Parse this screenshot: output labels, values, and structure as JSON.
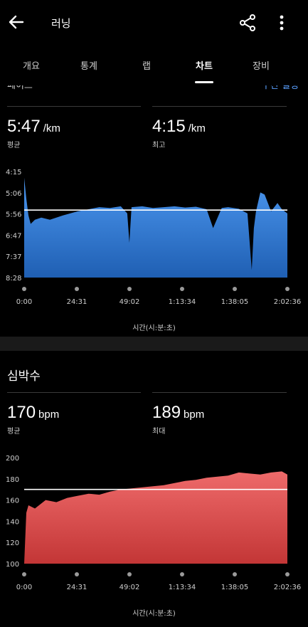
{
  "header": {
    "title": "러닝",
    "icons": {
      "back": "back-arrow-icon",
      "share": "share-icon",
      "more": "more-vertical-icon"
    }
  },
  "tabs": [
    {
      "label": "개요",
      "active": false
    },
    {
      "label": "통계",
      "active": false
    },
    {
      "label": "랩",
      "active": false
    },
    {
      "label": "차트",
      "active": true
    },
    {
      "label": "장비",
      "active": false
    }
  ],
  "clipped_header": {
    "left": "페이스",
    "right": "구간 설정"
  },
  "pace": {
    "avg_value": "5:47",
    "avg_unit": "/km",
    "avg_label": "평균",
    "best_value": "4:15",
    "best_unit": "/km",
    "best_label": "최고"
  },
  "heart": {
    "title": "심박수",
    "avg_value": "170",
    "avg_unit": "bpm",
    "avg_label": "평균",
    "max_value": "189",
    "max_unit": "bpm",
    "max_label": "최대"
  },
  "colors": {
    "pace_fill": "#3f8be6",
    "pace_fill_bottom": "#1f5fb3",
    "heart_fill": "#e45a5a",
    "heart_fill_bottom": "#c83a3a"
  },
  "chart_data": [
    {
      "type": "area",
      "name": "pace",
      "y_tick_labels": [
        "4:15",
        "5:06",
        "5:56",
        "6:47",
        "7:37",
        "8:28"
      ],
      "ylim": [
        "4:15",
        "8:28"
      ],
      "y_inverted": true,
      "x_tick_labels": [
        "0:00",
        "24:31",
        "49:02",
        "1:13:34",
        "1:38:05",
        "2:02:36"
      ],
      "xlabel": "시간(시:분:초)",
      "average_line": "5:47",
      "x_minutes": [
        0,
        1,
        2,
        3,
        5,
        8,
        12,
        18,
        25,
        30,
        35,
        40,
        45,
        48,
        49,
        50,
        55,
        60,
        65,
        70,
        75,
        80,
        85,
        88,
        92,
        95,
        100,
        104,
        106,
        107,
        108,
        110,
        112,
        115,
        118,
        120,
        122.6
      ],
      "y_pace": [
        "4:30",
        "5:20",
        "6:00",
        "6:20",
        "6:10",
        "6:05",
        "6:10",
        "6:00",
        "5:50",
        "5:45",
        "5:40",
        "5:42",
        "5:38",
        "5:55",
        "7:05",
        "5:40",
        "5:38",
        "5:42",
        "5:40",
        "5:38",
        "5:41",
        "5:39",
        "5:45",
        "6:30",
        "5:42",
        "5:40",
        "5:44",
        "5:55",
        "8:10",
        "6:30",
        "5:50",
        "5:05",
        "5:10",
        "5:50",
        "5:30",
        "5:45",
        "5:55"
      ]
    },
    {
      "type": "area",
      "name": "heart_rate",
      "y_tick_labels": [
        "200",
        "180",
        "160",
        "140",
        "120",
        "100"
      ],
      "ylim": [
        100,
        200
      ],
      "x_tick_labels": [
        "0:00",
        "24:31",
        "49:02",
        "1:13:34",
        "1:38:05",
        "2:02:36"
      ],
      "xlabel": "시간(시:분:초)",
      "average_line": 170,
      "x_minutes": [
        0,
        1,
        2,
        5,
        10,
        15,
        20,
        25,
        30,
        35,
        40,
        45,
        50,
        55,
        60,
        65,
        70,
        75,
        80,
        85,
        90,
        95,
        100,
        105,
        110,
        115,
        120,
        122.6
      ],
      "y_bpm": [
        100,
        148,
        155,
        152,
        160,
        158,
        162,
        164,
        166,
        165,
        168,
        170,
        171,
        172,
        173,
        174,
        176,
        178,
        179,
        181,
        182,
        183,
        186,
        185,
        184,
        186,
        187,
        184
      ]
    }
  ]
}
